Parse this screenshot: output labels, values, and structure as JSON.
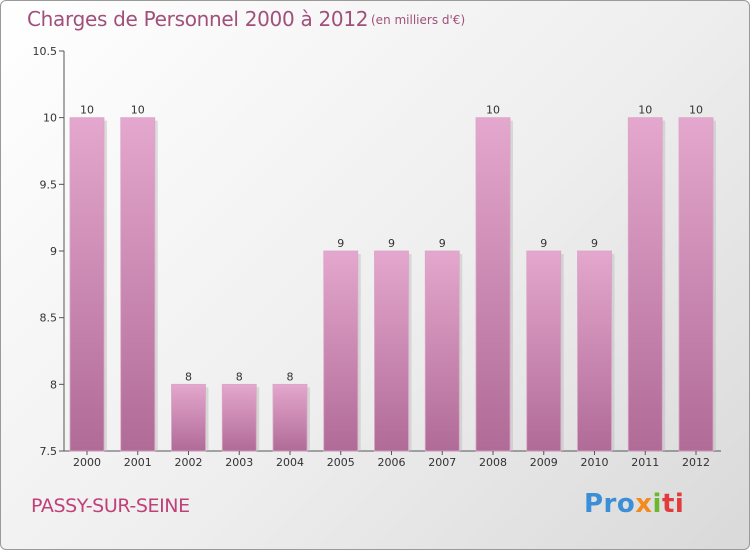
{
  "title": "Charges de Personnel 2000 à 2012",
  "subtitle": "(en milliers d'€)",
  "place": "PASSY-SUR-SEINE",
  "logo": {
    "part1": "Pro",
    "part2": "x",
    "part3": "i",
    "part4": "ti"
  },
  "colors": {
    "bar_top": "#e4a7cd",
    "bar_bottom": "#b06b97",
    "title": "#a0507a",
    "place": "#c0407a",
    "axis": "#555555"
  },
  "chart_data": {
    "type": "bar",
    "title": "Charges de Personnel 2000 à 2012",
    "unit": "(en milliers d'€)",
    "categories": [
      "2000",
      "2001",
      "2002",
      "2003",
      "2004",
      "2005",
      "2006",
      "2007",
      "2008",
      "2009",
      "2010",
      "2011",
      "2012"
    ],
    "values": [
      10,
      10,
      8,
      8,
      8,
      9,
      9,
      9,
      10,
      9,
      9,
      10,
      10
    ],
    "data_labels": [
      "10",
      "10",
      "8",
      "8",
      "8",
      "9",
      "9",
      "9",
      "10",
      "9",
      "9",
      "10",
      "10"
    ],
    "ylim": [
      7.5,
      10.5
    ],
    "yticks": [
      7.5,
      8,
      8.5,
      9,
      9.5,
      10,
      10.5
    ],
    "ytick_labels": [
      "7.5",
      "8",
      "8.5",
      "9",
      "9.5",
      "10",
      "10.5"
    ],
    "grid": false,
    "legend": "none"
  }
}
